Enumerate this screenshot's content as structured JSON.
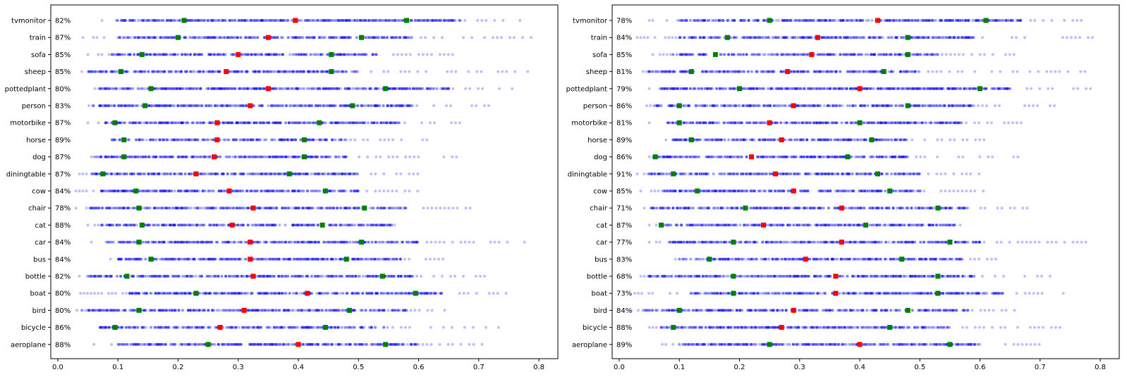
{
  "chart_data": [
    {
      "type": "scatter",
      "title": "",
      "xlabel": "",
      "ylabel": "",
      "xlim": [
        -0.0117,
        0.8316
      ],
      "xticks": [
        "0.0",
        "0.1",
        "0.2",
        "0.3",
        "0.4",
        "0.5",
        "0.6",
        "0.7",
        "0.8"
      ],
      "colors": {
        "points": "#0000ff",
        "median": "#ff0000",
        "quartile": "#008000"
      },
      "categories": [
        "aeroplane",
        "bicycle",
        "bird",
        "boat",
        "bottle",
        "bus",
        "car",
        "cat",
        "chair",
        "cow",
        "diningtable",
        "dog",
        "horse",
        "motorbike",
        "person",
        "pottedplant",
        "sheep",
        "sofa",
        "train",
        "tvmonitor"
      ],
      "percentages": [
        "88%",
        "86%",
        "80%",
        "80%",
        "82%",
        "84%",
        "84%",
        "88%",
        "78%",
        "84%",
        "87%",
        "87%",
        "89%",
        "87%",
        "83%",
        "80%",
        "85%",
        "85%",
        "87%",
        "82%"
      ],
      "series": [
        {
          "name": "median",
          "values": [
            0.4,
            0.27,
            0.31,
            0.415,
            0.325,
            0.32,
            0.32,
            0.29,
            0.325,
            0.285,
            0.23,
            0.26,
            0.265,
            0.265,
            0.32,
            0.35,
            0.28,
            0.3,
            0.35,
            0.395
          ]
        },
        {
          "name": "lower_quartile",
          "values": [
            0.25,
            0.095,
            0.135,
            0.23,
            0.115,
            0.155,
            0.135,
            0.14,
            0.135,
            0.13,
            0.075,
            0.11,
            0.11,
            0.095,
            0.145,
            0.155,
            0.105,
            0.14,
            0.2,
            0.21
          ]
        },
        {
          "name": "upper_quartile",
          "values": [
            0.545,
            0.445,
            0.485,
            0.595,
            0.54,
            0.48,
            0.505,
            0.44,
            0.51,
            0.445,
            0.385,
            0.41,
            0.41,
            0.435,
            0.49,
            0.545,
            0.455,
            0.455,
            0.505,
            0.58
          ]
        }
      ],
      "ranges": [
        {
          "dense": [
            0.1,
            0.6
          ],
          "sparse": [
            0.06,
            0.71
          ]
        },
        {
          "dense": [
            0.07,
            0.55
          ],
          "sparse": [
            0.05,
            0.74
          ]
        },
        {
          "dense": [
            0.04,
            0.58
          ],
          "sparse": [
            0.02,
            0.66
          ]
        },
        {
          "dense": [
            0.12,
            0.64
          ],
          "sparse": [
            0.02,
            0.75
          ]
        },
        {
          "dense": [
            0.05,
            0.59
          ],
          "sparse": [
            0.03,
            0.72
          ]
        },
        {
          "dense": [
            0.1,
            0.57
          ],
          "sparse": [
            0.07,
            0.65
          ]
        },
        {
          "dense": [
            0.08,
            0.6
          ],
          "sparse": [
            0.05,
            0.78
          ]
        },
        {
          "dense": [
            0.07,
            0.56
          ],
          "sparse": [
            0.05,
            0.58
          ]
        },
        {
          "dense": [
            0.05,
            0.58
          ],
          "sparse": [
            0.03,
            0.69
          ]
        },
        {
          "dense": [
            0.07,
            0.5
          ],
          "sparse": [
            0.03,
            0.61
          ]
        },
        {
          "dense": [
            0.05,
            0.5
          ],
          "sparse": [
            0.03,
            0.6
          ]
        },
        {
          "dense": [
            0.06,
            0.48
          ],
          "sparse": [
            0.05,
            0.67
          ]
        },
        {
          "dense": [
            0.09,
            0.48
          ],
          "sparse": [
            0.06,
            0.62
          ]
        },
        {
          "dense": [
            0.08,
            0.57
          ],
          "sparse": [
            0.05,
            0.67
          ]
        },
        {
          "dense": [
            0.06,
            0.59
          ],
          "sparse": [
            0.04,
            0.73
          ]
        },
        {
          "dense": [
            0.07,
            0.65
          ],
          "sparse": [
            0.05,
            0.79
          ]
        },
        {
          "dense": [
            0.05,
            0.5
          ],
          "sparse": [
            0.04,
            0.79
          ]
        },
        {
          "dense": [
            0.09,
            0.53
          ],
          "sparse": [
            0.05,
            0.66
          ]
        },
        {
          "dense": [
            0.1,
            0.59
          ],
          "sparse": [
            0.03,
            0.79
          ]
        },
        {
          "dense": [
            0.1,
            0.67
          ],
          "sparse": [
            0.05,
            0.78
          ]
        }
      ]
    },
    {
      "type": "scatter",
      "title": "",
      "xlabel": "",
      "ylabel": "",
      "xlim": [
        -0.0117,
        0.8316
      ],
      "xticks": [
        "0.0",
        "0.1",
        "0.2",
        "0.3",
        "0.4",
        "0.5",
        "0.6",
        "0.7",
        "0.8"
      ],
      "colors": {
        "points": "#0000ff",
        "median": "#ff0000",
        "quartile": "#008000"
      },
      "categories": [
        "aeroplane",
        "bicycle",
        "bird",
        "boat",
        "bottle",
        "bus",
        "car",
        "cat",
        "chair",
        "cow",
        "diningtable",
        "dog",
        "horse",
        "motorbike",
        "person",
        "pottedplant",
        "sheep",
        "sofa",
        "train",
        "tvmonitor"
      ],
      "percentages": [
        "89%",
        "88%",
        "84%",
        "73%",
        "68%",
        "83%",
        "77%",
        "87%",
        "71%",
        "85%",
        "91%",
        "86%",
        "89%",
        "81%",
        "86%",
        "79%",
        "81%",
        "85%",
        "84%",
        "78%"
      ],
      "series": [
        {
          "name": "median",
          "values": [
            0.4,
            0.27,
            0.29,
            0.36,
            0.36,
            0.31,
            0.37,
            0.24,
            0.37,
            0.29,
            0.26,
            0.22,
            0.27,
            0.25,
            0.29,
            0.4,
            0.28,
            0.32,
            0.33,
            0.43
          ]
        },
        {
          "name": "lower_quartile",
          "values": [
            0.25,
            0.09,
            0.1,
            0.19,
            0.19,
            0.15,
            0.19,
            0.07,
            0.21,
            0.13,
            0.09,
            0.06,
            0.12,
            0.1,
            0.1,
            0.2,
            0.12,
            0.16,
            0.18,
            0.25
          ]
        },
        {
          "name": "upper_quartile",
          "values": [
            0.55,
            0.45,
            0.48,
            0.53,
            0.53,
            0.47,
            0.55,
            0.41,
            0.53,
            0.45,
            0.43,
            0.38,
            0.42,
            0.4,
            0.48,
            0.6,
            0.44,
            0.48,
            0.48,
            0.61
          ]
        }
      ],
      "ranges": [
        {
          "dense": [
            0.1,
            0.6
          ],
          "sparse": [
            0.06,
            0.71
          ]
        },
        {
          "dense": [
            0.07,
            0.55
          ],
          "sparse": [
            0.05,
            0.74
          ]
        },
        {
          "dense": [
            0.04,
            0.58
          ],
          "sparse": [
            0.02,
            0.66
          ]
        },
        {
          "dense": [
            0.12,
            0.64
          ],
          "sparse": [
            0.02,
            0.75
          ]
        },
        {
          "dense": [
            0.05,
            0.59
          ],
          "sparse": [
            0.03,
            0.72
          ]
        },
        {
          "dense": [
            0.1,
            0.57
          ],
          "sparse": [
            0.07,
            0.65
          ]
        },
        {
          "dense": [
            0.08,
            0.6
          ],
          "sparse": [
            0.05,
            0.78
          ]
        },
        {
          "dense": [
            0.07,
            0.56
          ],
          "sparse": [
            0.05,
            0.58
          ]
        },
        {
          "dense": [
            0.05,
            0.58
          ],
          "sparse": [
            0.03,
            0.69
          ]
        },
        {
          "dense": [
            0.07,
            0.5
          ],
          "sparse": [
            0.03,
            0.61
          ]
        },
        {
          "dense": [
            0.05,
            0.5
          ],
          "sparse": [
            0.03,
            0.6
          ]
        },
        {
          "dense": [
            0.06,
            0.48
          ],
          "sparse": [
            0.05,
            0.67
          ]
        },
        {
          "dense": [
            0.09,
            0.48
          ],
          "sparse": [
            0.06,
            0.62
          ]
        },
        {
          "dense": [
            0.08,
            0.57
          ],
          "sparse": [
            0.05,
            0.67
          ]
        },
        {
          "dense": [
            0.06,
            0.59
          ],
          "sparse": [
            0.04,
            0.73
          ]
        },
        {
          "dense": [
            0.07,
            0.65
          ],
          "sparse": [
            0.05,
            0.79
          ]
        },
        {
          "dense": [
            0.05,
            0.5
          ],
          "sparse": [
            0.04,
            0.79
          ]
        },
        {
          "dense": [
            0.09,
            0.53
          ],
          "sparse": [
            0.05,
            0.66
          ]
        },
        {
          "dense": [
            0.1,
            0.59
          ],
          "sparse": [
            0.03,
            0.79
          ]
        },
        {
          "dense": [
            0.1,
            0.67
          ],
          "sparse": [
            0.05,
            0.78
          ]
        }
      ]
    }
  ]
}
